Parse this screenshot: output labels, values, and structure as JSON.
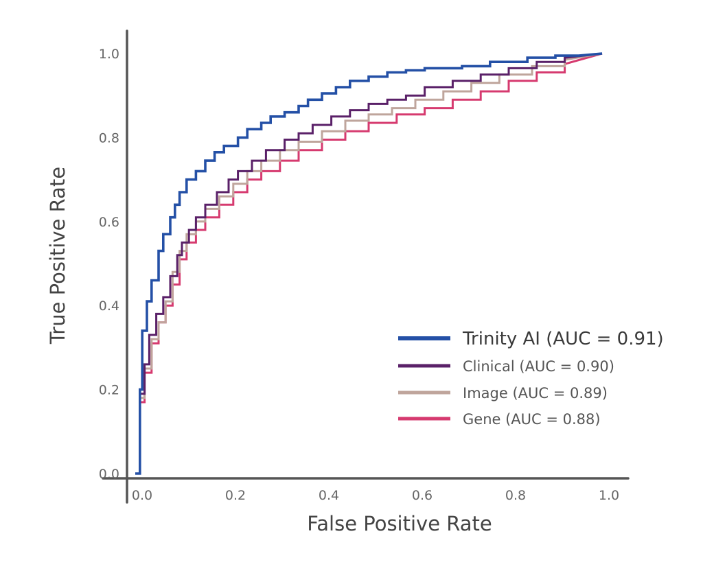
{
  "chart_data": {
    "type": "line",
    "title": "",
    "xlabel": "False Positive Rate",
    "ylabel": "True Positive Rate",
    "xlim": [
      0.0,
      1.0
    ],
    "ylim": [
      0.0,
      1.0
    ],
    "x_ticks": [
      0.0,
      0.2,
      0.4,
      0.6,
      0.8,
      1.0
    ],
    "y_ticks": [
      0.0,
      0.2,
      0.4,
      0.6,
      0.8,
      1.0
    ],
    "x_tick_labels": [
      "0.0",
      "0.2",
      "0.4",
      "0.6",
      "0.8",
      "1.0"
    ],
    "y_tick_labels": [
      "0.0",
      "0.2",
      "0.4",
      "0.6",
      "0.8",
      "1.0"
    ],
    "grid": false,
    "legend_position": "bottom-right",
    "series": [
      {
        "name": "Trinity AI (AUC = 0.91)",
        "color": "#2450a6",
        "emphasis": true,
        "points": [
          [
            0.0,
            0.0
          ],
          [
            0.01,
            0.0
          ],
          [
            0.01,
            0.2
          ],
          [
            0.015,
            0.2
          ],
          [
            0.015,
            0.34
          ],
          [
            0.025,
            0.34
          ],
          [
            0.025,
            0.41
          ],
          [
            0.035,
            0.41
          ],
          [
            0.035,
            0.46
          ],
          [
            0.05,
            0.46
          ],
          [
            0.05,
            0.53
          ],
          [
            0.06,
            0.53
          ],
          [
            0.06,
            0.57
          ],
          [
            0.075,
            0.57
          ],
          [
            0.075,
            0.61
          ],
          [
            0.085,
            0.61
          ],
          [
            0.085,
            0.64
          ],
          [
            0.095,
            0.64
          ],
          [
            0.095,
            0.67
          ],
          [
            0.11,
            0.67
          ],
          [
            0.11,
            0.7
          ],
          [
            0.13,
            0.7
          ],
          [
            0.13,
            0.72
          ],
          [
            0.15,
            0.72
          ],
          [
            0.15,
            0.745
          ],
          [
            0.17,
            0.745
          ],
          [
            0.17,
            0.765
          ],
          [
            0.19,
            0.765
          ],
          [
            0.19,
            0.78
          ],
          [
            0.22,
            0.78
          ],
          [
            0.22,
            0.8
          ],
          [
            0.24,
            0.8
          ],
          [
            0.24,
            0.82
          ],
          [
            0.27,
            0.82
          ],
          [
            0.27,
            0.835
          ],
          [
            0.29,
            0.835
          ],
          [
            0.29,
            0.85
          ],
          [
            0.32,
            0.85
          ],
          [
            0.32,
            0.86
          ],
          [
            0.35,
            0.86
          ],
          [
            0.35,
            0.875
          ],
          [
            0.37,
            0.875
          ],
          [
            0.37,
            0.89
          ],
          [
            0.4,
            0.89
          ],
          [
            0.4,
            0.905
          ],
          [
            0.43,
            0.905
          ],
          [
            0.43,
            0.92
          ],
          [
            0.46,
            0.92
          ],
          [
            0.46,
            0.935
          ],
          [
            0.5,
            0.935
          ],
          [
            0.5,
            0.945
          ],
          [
            0.54,
            0.945
          ],
          [
            0.54,
            0.955
          ],
          [
            0.58,
            0.955
          ],
          [
            0.58,
            0.96
          ],
          [
            0.62,
            0.96
          ],
          [
            0.62,
            0.965
          ],
          [
            0.7,
            0.965
          ],
          [
            0.7,
            0.97
          ],
          [
            0.76,
            0.97
          ],
          [
            0.76,
            0.98
          ],
          [
            0.84,
            0.98
          ],
          [
            0.84,
            0.99
          ],
          [
            0.9,
            0.99
          ],
          [
            0.9,
            0.995
          ],
          [
            0.95,
            0.995
          ],
          [
            1.0,
            1.0
          ]
        ]
      },
      {
        "name": "Clinical (AUC = 0.90)",
        "color": "#5a2068",
        "emphasis": false,
        "points": [
          [
            0.0,
            0.0
          ],
          [
            0.01,
            0.0
          ],
          [
            0.01,
            0.19
          ],
          [
            0.02,
            0.19
          ],
          [
            0.02,
            0.26
          ],
          [
            0.03,
            0.26
          ],
          [
            0.03,
            0.33
          ],
          [
            0.045,
            0.33
          ],
          [
            0.045,
            0.38
          ],
          [
            0.06,
            0.38
          ],
          [
            0.06,
            0.42
          ],
          [
            0.075,
            0.42
          ],
          [
            0.075,
            0.47
          ],
          [
            0.09,
            0.47
          ],
          [
            0.09,
            0.52
          ],
          [
            0.1,
            0.52
          ],
          [
            0.1,
            0.55
          ],
          [
            0.115,
            0.55
          ],
          [
            0.115,
            0.58
          ],
          [
            0.13,
            0.58
          ],
          [
            0.13,
            0.61
          ],
          [
            0.15,
            0.61
          ],
          [
            0.15,
            0.64
          ],
          [
            0.175,
            0.64
          ],
          [
            0.175,
            0.67
          ],
          [
            0.2,
            0.67
          ],
          [
            0.2,
            0.7
          ],
          [
            0.22,
            0.7
          ],
          [
            0.22,
            0.72
          ],
          [
            0.25,
            0.72
          ],
          [
            0.25,
            0.745
          ],
          [
            0.28,
            0.745
          ],
          [
            0.28,
            0.77
          ],
          [
            0.32,
            0.77
          ],
          [
            0.32,
            0.795
          ],
          [
            0.35,
            0.795
          ],
          [
            0.35,
            0.81
          ],
          [
            0.38,
            0.81
          ],
          [
            0.38,
            0.83
          ],
          [
            0.42,
            0.83
          ],
          [
            0.42,
            0.85
          ],
          [
            0.46,
            0.85
          ],
          [
            0.46,
            0.865
          ],
          [
            0.5,
            0.865
          ],
          [
            0.5,
            0.88
          ],
          [
            0.54,
            0.88
          ],
          [
            0.54,
            0.89
          ],
          [
            0.58,
            0.89
          ],
          [
            0.58,
            0.9
          ],
          [
            0.62,
            0.9
          ],
          [
            0.62,
            0.92
          ],
          [
            0.68,
            0.92
          ],
          [
            0.68,
            0.935
          ],
          [
            0.74,
            0.935
          ],
          [
            0.74,
            0.95
          ],
          [
            0.8,
            0.95
          ],
          [
            0.8,
            0.965
          ],
          [
            0.86,
            0.965
          ],
          [
            0.86,
            0.98
          ],
          [
            0.92,
            0.98
          ],
          [
            0.92,
            0.99
          ],
          [
            1.0,
            1.0
          ]
        ]
      },
      {
        "name": "Image (AUC = 0.89)",
        "color": "#bfa59c",
        "emphasis": false,
        "points": [
          [
            0.0,
            0.0
          ],
          [
            0.01,
            0.0
          ],
          [
            0.01,
            0.18
          ],
          [
            0.02,
            0.18
          ],
          [
            0.02,
            0.25
          ],
          [
            0.035,
            0.25
          ],
          [
            0.035,
            0.32
          ],
          [
            0.05,
            0.32
          ],
          [
            0.05,
            0.36
          ],
          [
            0.065,
            0.36
          ],
          [
            0.065,
            0.41
          ],
          [
            0.08,
            0.41
          ],
          [
            0.08,
            0.48
          ],
          [
            0.095,
            0.48
          ],
          [
            0.095,
            0.53
          ],
          [
            0.11,
            0.53
          ],
          [
            0.11,
            0.57
          ],
          [
            0.13,
            0.57
          ],
          [
            0.13,
            0.6
          ],
          [
            0.15,
            0.6
          ],
          [
            0.15,
            0.63
          ],
          [
            0.18,
            0.63
          ],
          [
            0.18,
            0.66
          ],
          [
            0.21,
            0.66
          ],
          [
            0.21,
            0.69
          ],
          [
            0.24,
            0.69
          ],
          [
            0.24,
            0.72
          ],
          [
            0.27,
            0.72
          ],
          [
            0.27,
            0.745
          ],
          [
            0.31,
            0.745
          ],
          [
            0.31,
            0.77
          ],
          [
            0.35,
            0.77
          ],
          [
            0.35,
            0.79
          ],
          [
            0.4,
            0.79
          ],
          [
            0.4,
            0.815
          ],
          [
            0.45,
            0.815
          ],
          [
            0.45,
            0.84
          ],
          [
            0.5,
            0.84
          ],
          [
            0.5,
            0.855
          ],
          [
            0.55,
            0.855
          ],
          [
            0.55,
            0.87
          ],
          [
            0.6,
            0.87
          ],
          [
            0.6,
            0.89
          ],
          [
            0.66,
            0.89
          ],
          [
            0.66,
            0.91
          ],
          [
            0.72,
            0.91
          ],
          [
            0.72,
            0.93
          ],
          [
            0.78,
            0.93
          ],
          [
            0.78,
            0.95
          ],
          [
            0.85,
            0.95
          ],
          [
            0.85,
            0.97
          ],
          [
            0.92,
            0.97
          ],
          [
            0.92,
            0.985
          ],
          [
            1.0,
            1.0
          ]
        ]
      },
      {
        "name": "Gene (AUC = 0.88)",
        "color": "#d63a6f",
        "emphasis": false,
        "points": [
          [
            0.0,
            0.0
          ],
          [
            0.01,
            0.0
          ],
          [
            0.01,
            0.17
          ],
          [
            0.02,
            0.17
          ],
          [
            0.02,
            0.24
          ],
          [
            0.035,
            0.24
          ],
          [
            0.035,
            0.31
          ],
          [
            0.05,
            0.31
          ],
          [
            0.05,
            0.36
          ],
          [
            0.065,
            0.36
          ],
          [
            0.065,
            0.4
          ],
          [
            0.08,
            0.4
          ],
          [
            0.08,
            0.45
          ],
          [
            0.095,
            0.45
          ],
          [
            0.095,
            0.51
          ],
          [
            0.11,
            0.51
          ],
          [
            0.11,
            0.55
          ],
          [
            0.13,
            0.55
          ],
          [
            0.13,
            0.58
          ],
          [
            0.15,
            0.58
          ],
          [
            0.15,
            0.61
          ],
          [
            0.18,
            0.61
          ],
          [
            0.18,
            0.64
          ],
          [
            0.21,
            0.64
          ],
          [
            0.21,
            0.67
          ],
          [
            0.24,
            0.67
          ],
          [
            0.24,
            0.7
          ],
          [
            0.27,
            0.7
          ],
          [
            0.27,
            0.72
          ],
          [
            0.31,
            0.72
          ],
          [
            0.31,
            0.745
          ],
          [
            0.35,
            0.745
          ],
          [
            0.35,
            0.77
          ],
          [
            0.4,
            0.77
          ],
          [
            0.4,
            0.795
          ],
          [
            0.45,
            0.795
          ],
          [
            0.45,
            0.815
          ],
          [
            0.5,
            0.815
          ],
          [
            0.5,
            0.835
          ],
          [
            0.56,
            0.835
          ],
          [
            0.56,
            0.855
          ],
          [
            0.62,
            0.855
          ],
          [
            0.62,
            0.87
          ],
          [
            0.68,
            0.87
          ],
          [
            0.68,
            0.89
          ],
          [
            0.74,
            0.89
          ],
          [
            0.74,
            0.91
          ],
          [
            0.8,
            0.91
          ],
          [
            0.8,
            0.935
          ],
          [
            0.86,
            0.935
          ],
          [
            0.86,
            0.955
          ],
          [
            0.92,
            0.955
          ],
          [
            0.92,
            0.975
          ],
          [
            1.0,
            1.0
          ]
        ]
      }
    ]
  }
}
